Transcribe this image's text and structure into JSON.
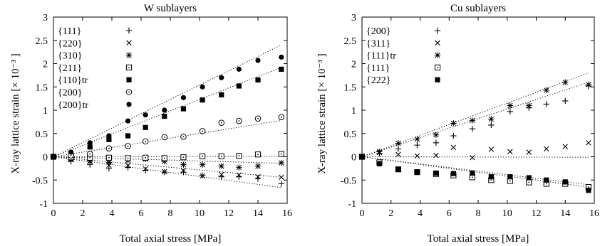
{
  "chart_data": [
    {
      "type": "scatter",
      "title": "W sublayers",
      "xlabel": "Total axial stress [MPa]",
      "ylabel": "X-ray lattice strain [× 10⁻³ ]",
      "xlim": [
        0,
        16
      ],
      "ylim": [
        -1,
        3
      ],
      "xticks": [
        0,
        2,
        4,
        6,
        8,
        10,
        12,
        14,
        16
      ],
      "yticks": [
        -1,
        -0.5,
        0,
        0.5,
        1,
        1.5,
        2,
        2.5,
        3
      ],
      "grid": false,
      "legend": "top-left",
      "series": [
        {
          "name": "{111}",
          "marker": "plus",
          "x": [
            0,
            1.2,
            2.5,
            3.8,
            5.1,
            6.3,
            7.6,
            8.9,
            10.2,
            11.5,
            12.7,
            14.0,
            15.6
          ],
          "y": [
            0,
            -0.1,
            -0.17,
            -0.25,
            -0.23,
            -0.29,
            -0.33,
            -0.33,
            -0.4,
            -0.43,
            -0.43,
            -0.47,
            -0.58
          ]
        },
        {
          "name": "{220}",
          "marker": "cross",
          "x": [
            0,
            1.2,
            2.5,
            3.8,
            5.1,
            6.3,
            7.6,
            8.9,
            10.2,
            11.5,
            12.7,
            14.0,
            15.6
          ],
          "y": [
            0,
            -0.04,
            -0.1,
            -0.18,
            -0.19,
            -0.26,
            -0.32,
            -0.3,
            -0.41,
            -0.38,
            -0.39,
            -0.43,
            -0.44
          ]
        },
        {
          "name": "{310}",
          "marker": "asterisk",
          "x": [
            0,
            1.2,
            2.5,
            3.8,
            5.1,
            6.3,
            7.6,
            8.9,
            10.2,
            11.5,
            12.7,
            14.0,
            15.6
          ],
          "y": [
            0,
            -0.06,
            -0.09,
            -0.12,
            -0.08,
            -0.05,
            -0.1,
            -0.17,
            -0.17,
            -0.2,
            -0.23,
            -0.2,
            -0.13
          ]
        },
        {
          "name": "{211}",
          "marker": "square-dot",
          "x": [
            0,
            1.2,
            2.5,
            3.8,
            5.1,
            6.3,
            7.6,
            8.9,
            10.2,
            11.5,
            12.7,
            14.0,
            15.6
          ],
          "y": [
            0,
            -0.01,
            -0.02,
            -0.02,
            -0.03,
            -0.02,
            -0.03,
            -0.01,
            0.01,
            0.01,
            0.02,
            0.05,
            0.06
          ]
        },
        {
          "name": "{110}tr",
          "marker": "filled-square",
          "x": [
            0,
            1.2,
            2.5,
            3.8,
            5.1,
            6.3,
            7.6,
            8.9,
            10.2,
            11.5,
            12.7,
            14.0,
            15.6
          ],
          "y": [
            0,
            0.05,
            0.21,
            0.37,
            0.45,
            0.63,
            0.87,
            1.03,
            1.22,
            1.33,
            1.52,
            1.65,
            1.88
          ]
        },
        {
          "name": "{200}",
          "marker": "circle-dot",
          "x": [
            0,
            1.2,
            2.5,
            3.8,
            5.1,
            6.3,
            7.6,
            8.9,
            10.2,
            11.5,
            12.7,
            14.0,
            15.6
          ],
          "y": [
            0,
            0.03,
            0.06,
            0.18,
            0.23,
            0.33,
            0.42,
            0.43,
            0.55,
            0.73,
            0.77,
            0.82,
            0.85
          ]
        },
        {
          "name": "{200}tr",
          "marker": "filled-circle",
          "x": [
            0,
            1.2,
            2.5,
            3.8,
            5.1,
            6.3,
            7.6,
            8.9,
            10.2,
            11.5,
            12.7,
            14.0,
            15.6
          ],
          "y": [
            0,
            0.1,
            0.3,
            0.45,
            0.77,
            0.9,
            1.0,
            1.27,
            1.5,
            1.7,
            1.88,
            2.07,
            2.14
          ]
        }
      ],
      "fit_lines": [
        {
          "x": [
            0,
            15.6
          ],
          "y": [
            0,
            2.4
          ]
        },
        {
          "x": [
            0,
            15.6
          ],
          "y": [
            0,
            1.92
          ]
        },
        {
          "x": [
            0,
            15.6
          ],
          "y": [
            0,
            0.78
          ]
        },
        {
          "x": [
            0,
            15.6
          ],
          "y": [
            0,
            0.01
          ]
        },
        {
          "x": [
            0,
            15.6
          ],
          "y": [
            0,
            -0.14
          ]
        },
        {
          "x": [
            0,
            15.6
          ],
          "y": [
            0,
            -0.44
          ]
        },
        {
          "x": [
            0,
            15.6
          ],
          "y": [
            0,
            -0.66
          ]
        }
      ]
    },
    {
      "type": "scatter",
      "title": "Cu sublayers",
      "xlabel": "Total axial stress [MPa]",
      "ylabel": "X-ray lattice strain [× 10⁻³ ]",
      "xlim": [
        0,
        16
      ],
      "ylim": [
        -1,
        3
      ],
      "xticks": [
        0,
        2,
        4,
        6,
        8,
        10,
        12,
        14,
        16
      ],
      "yticks": [
        -1,
        -0.5,
        0,
        0.5,
        1,
        1.5,
        2,
        2.5,
        3
      ],
      "grid": false,
      "legend": "top-left",
      "series": [
        {
          "name": "{200}",
          "marker": "plus",
          "x": [
            0,
            1.2,
            2.5,
            3.8,
            5.1,
            6.3,
            7.6,
            8.9,
            10.2,
            11.5,
            12.7,
            14.0,
            15.6
          ],
          "y": [
            0,
            0.07,
            0.17,
            0.25,
            0.3,
            0.45,
            0.6,
            0.68,
            0.97,
            1.05,
            1.13,
            1.2,
            1.52
          ]
        },
        {
          "name": "{311}",
          "marker": "cross",
          "x": [
            0,
            1.2,
            2.5,
            3.8,
            5.1,
            6.3,
            7.6,
            8.9,
            10.2,
            11.5,
            12.7,
            14.0,
            15.6
          ],
          "y": [
            0,
            0.09,
            0.05,
            0.02,
            0.03,
            0.2,
            -0.02,
            0.16,
            0.11,
            0.1,
            0.17,
            0.22,
            0.3
          ]
        },
        {
          "name": "{111}tr",
          "marker": "asterisk",
          "x": [
            0,
            1.2,
            2.5,
            3.8,
            5.1,
            6.3,
            7.6,
            8.9,
            10.2,
            11.5,
            12.7,
            14.0,
            15.6
          ],
          "y": [
            0,
            0.11,
            0.29,
            0.38,
            0.47,
            0.72,
            0.78,
            0.81,
            1.1,
            1.1,
            1.43,
            1.6,
            1.55
          ]
        },
        {
          "name": "{111}",
          "marker": "square-dot",
          "x": [
            0,
            1.2,
            2.5,
            3.8,
            5.1,
            6.3,
            7.6,
            8.9,
            10.2,
            11.5,
            12.7,
            14.0,
            15.6
          ],
          "y": [
            0,
            -0.12,
            -0.27,
            -0.33,
            -0.37,
            -0.4,
            -0.44,
            -0.5,
            -0.52,
            -0.55,
            -0.58,
            -0.58,
            -0.65
          ]
        },
        {
          "name": "{222}",
          "marker": "filled-square",
          "x": [
            0,
            1.2,
            2.5,
            3.8,
            5.1,
            6.3,
            7.6,
            8.9,
            10.2,
            11.5,
            12.7,
            14.0,
            15.6
          ],
          "y": [
            0,
            -0.15,
            -0.27,
            -0.33,
            -0.35,
            -0.36,
            -0.35,
            -0.43,
            -0.43,
            -0.45,
            -0.5,
            -0.54,
            -0.72
          ]
        }
      ],
      "fit_lines": [
        {
          "x": [
            0,
            15.6
          ],
          "y": [
            0,
            1.8
          ]
        },
        {
          "x": [
            0,
            15.6
          ],
          "y": [
            0,
            1.6
          ]
        },
        {
          "x": [
            0,
            15.6
          ],
          "y": [
            0,
            -0.01
          ]
        },
        {
          "x": [
            0,
            15.6
          ],
          "y": [
            0,
            -0.6
          ]
        },
        {
          "x": [
            0,
            15.6
          ],
          "y": [
            0,
            -0.65
          ]
        }
      ]
    }
  ]
}
